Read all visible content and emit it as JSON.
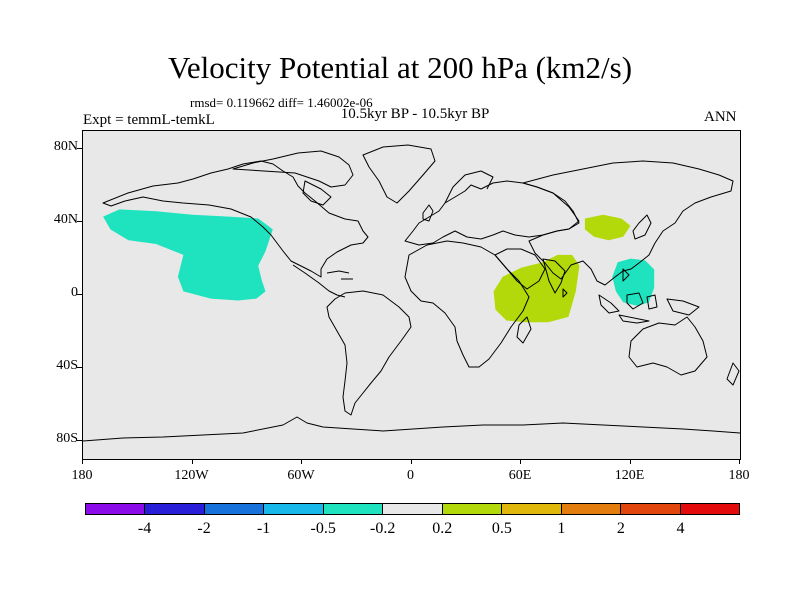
{
  "title": "Velocity Potential at 200 hPa (km2/s)",
  "stats": "rmsd= 0.119662 diff= 1.46002e-06",
  "subtitle": "10.5kyr BP - 10.5kyr BP",
  "experiment": "Expt = temmL-temkL",
  "season": "ANN",
  "map": {
    "background_color": "#e8e8e8",
    "land_outline_color": "#000000",
    "lat_ticks": [
      {
        "value": 80,
        "label": "80N"
      },
      {
        "value": 40,
        "label": "40N"
      },
      {
        "value": 0,
        "label": "0"
      },
      {
        "value": -40,
        "label": "40S"
      },
      {
        "value": -80,
        "label": "80S"
      }
    ],
    "lon_ticks": [
      {
        "value": -180,
        "label": "180"
      },
      {
        "value": -120,
        "label": "120W"
      },
      {
        "value": -60,
        "label": "60W"
      },
      {
        "value": 0,
        "label": "0"
      },
      {
        "value": 60,
        "label": "60E"
      },
      {
        "value": 120,
        "label": "120E"
      },
      {
        "value": 180,
        "label": "180"
      }
    ],
    "anomaly_regions": [
      {
        "name": "north-pacific-america",
        "category": "-0.5 to -0.2",
        "color": "#1ee3be",
        "polygon": [
          [
            -169,
            43
          ],
          [
            -160,
            47
          ],
          [
            -140,
            46
          ],
          [
            -120,
            44
          ],
          [
            -100,
            43
          ],
          [
            -84,
            42
          ],
          [
            -76,
            36
          ],
          [
            -80,
            24
          ],
          [
            -84,
            16
          ],
          [
            -82,
            8
          ],
          [
            -80,
            2
          ],
          [
            -85,
            -2
          ],
          [
            -95,
            -3
          ],
          [
            -110,
            -2
          ],
          [
            -125,
            2
          ],
          [
            -128,
            10
          ],
          [
            -125,
            22
          ],
          [
            -140,
            28
          ],
          [
            -155,
            30
          ],
          [
            -165,
            36
          ]
        ]
      },
      {
        "name": "maritime-continent",
        "category": "-0.5 to -0.2",
        "color": "#1ee3be",
        "polygon": [
          [
            113,
            18
          ],
          [
            120,
            20
          ],
          [
            128,
            19
          ],
          [
            133,
            14
          ],
          [
            133,
            4
          ],
          [
            130,
            -4
          ],
          [
            124,
            -6
          ],
          [
            116,
            -4
          ],
          [
            112,
            2
          ],
          [
            110,
            10
          ]
        ]
      },
      {
        "name": "indian-ocean",
        "category": "0.2 to 0.5",
        "color": "#b4d90a",
        "polygon": [
          [
            50,
            10
          ],
          [
            60,
            15
          ],
          [
            72,
            18
          ],
          [
            80,
            22
          ],
          [
            88,
            22
          ],
          [
            92,
            16
          ],
          [
            90,
            2
          ],
          [
            86,
            -12
          ],
          [
            75,
            -15
          ],
          [
            62,
            -15
          ],
          [
            52,
            -14
          ],
          [
            46,
            -8
          ],
          [
            45,
            2
          ]
        ]
      },
      {
        "name": "east-asia",
        "category": "0.2 to 0.5",
        "color": "#b4d90a",
        "polygon": [
          [
            95,
            42
          ],
          [
            105,
            44
          ],
          [
            115,
            42
          ],
          [
            120,
            38
          ],
          [
            116,
            32
          ],
          [
            108,
            30
          ],
          [
            100,
            32
          ],
          [
            95,
            36
          ]
        ]
      }
    ]
  },
  "colorbar": {
    "colors": [
      "#8b0ce8",
      "#2a1fd9",
      "#1773db",
      "#18b9ea",
      "#1ee3be",
      "#e8e8e8",
      "#b4d90a",
      "#e0b80c",
      "#e37d0e",
      "#e2460c",
      "#e30b0b"
    ],
    "labels": [
      "-4",
      "-2",
      "-1",
      "-0.5",
      "-0.2",
      "0.2",
      "0.5",
      "1",
      "2",
      "4"
    ]
  }
}
